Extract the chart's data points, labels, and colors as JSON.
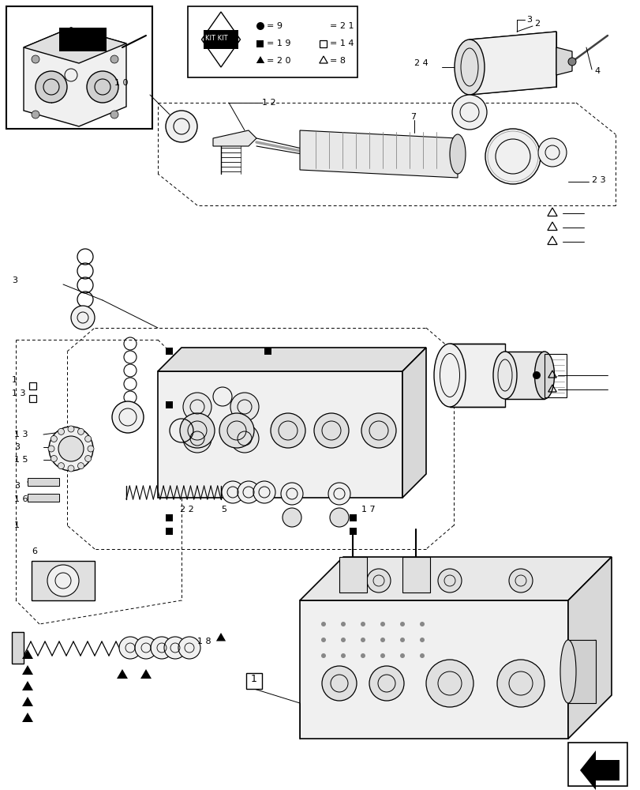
{
  "bg_color": "#ffffff",
  "fig_width": 8.12,
  "fig_height": 10.0,
  "dpi": 100
}
